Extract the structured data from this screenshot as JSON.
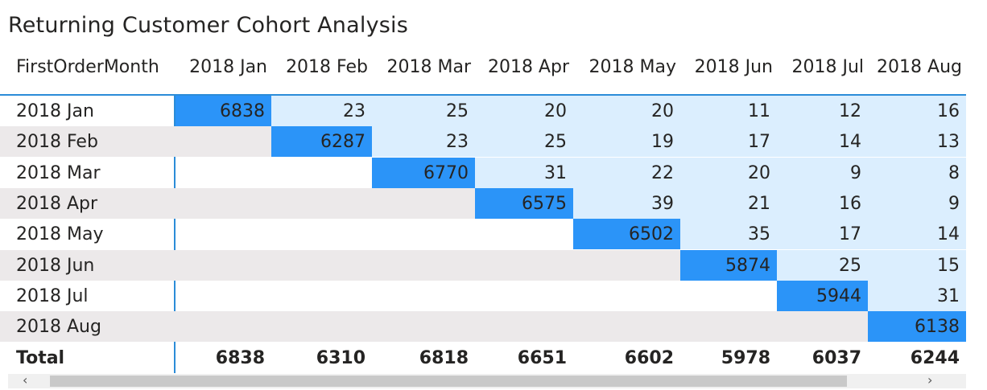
{
  "title": "Returning Customer Cohort Analysis",
  "row_header": "FirstOrderMonth",
  "total_label": "Total",
  "scroll": {
    "left_icon": "‹",
    "right_icon": "›"
  },
  "colors": {
    "diagonal": "#2b94f8",
    "light": "#dbeefe",
    "accent": "#2b8cd8",
    "band": "#ece9ea"
  },
  "chart_data": {
    "type": "heatmap",
    "title": "Returning Customer Cohort Analysis",
    "xlabel": "",
    "ylabel": "FirstOrderMonth",
    "columns": [
      "2018 Jan",
      "2018 Feb",
      "2018 Mar",
      "2018 Apr",
      "2018 May",
      "2018 Jun",
      "2018 Jul",
      "2018 Aug"
    ],
    "rows": [
      {
        "label": "2018 Jan",
        "values": [
          6838,
          23,
          25,
          20,
          20,
          11,
          12,
          16
        ]
      },
      {
        "label": "2018 Feb",
        "values": [
          null,
          6287,
          23,
          25,
          19,
          17,
          14,
          13
        ]
      },
      {
        "label": "2018 Mar",
        "values": [
          null,
          null,
          6770,
          31,
          22,
          20,
          9,
          8
        ]
      },
      {
        "label": "2018 Apr",
        "values": [
          null,
          null,
          null,
          6575,
          39,
          21,
          16,
          9
        ]
      },
      {
        "label": "2018 May",
        "values": [
          null,
          null,
          null,
          null,
          6502,
          35,
          17,
          14
        ]
      },
      {
        "label": "2018 Jun",
        "values": [
          null,
          null,
          null,
          null,
          null,
          5874,
          25,
          15
        ]
      },
      {
        "label": "2018 Jul",
        "values": [
          null,
          null,
          null,
          null,
          null,
          null,
          5944,
          31
        ]
      },
      {
        "label": "2018 Aug",
        "values": [
          null,
          null,
          null,
          null,
          null,
          null,
          null,
          6138
        ]
      }
    ],
    "totals": [
      6838,
      6310,
      6818,
      6651,
      6602,
      5978,
      6037,
      6244
    ]
  }
}
